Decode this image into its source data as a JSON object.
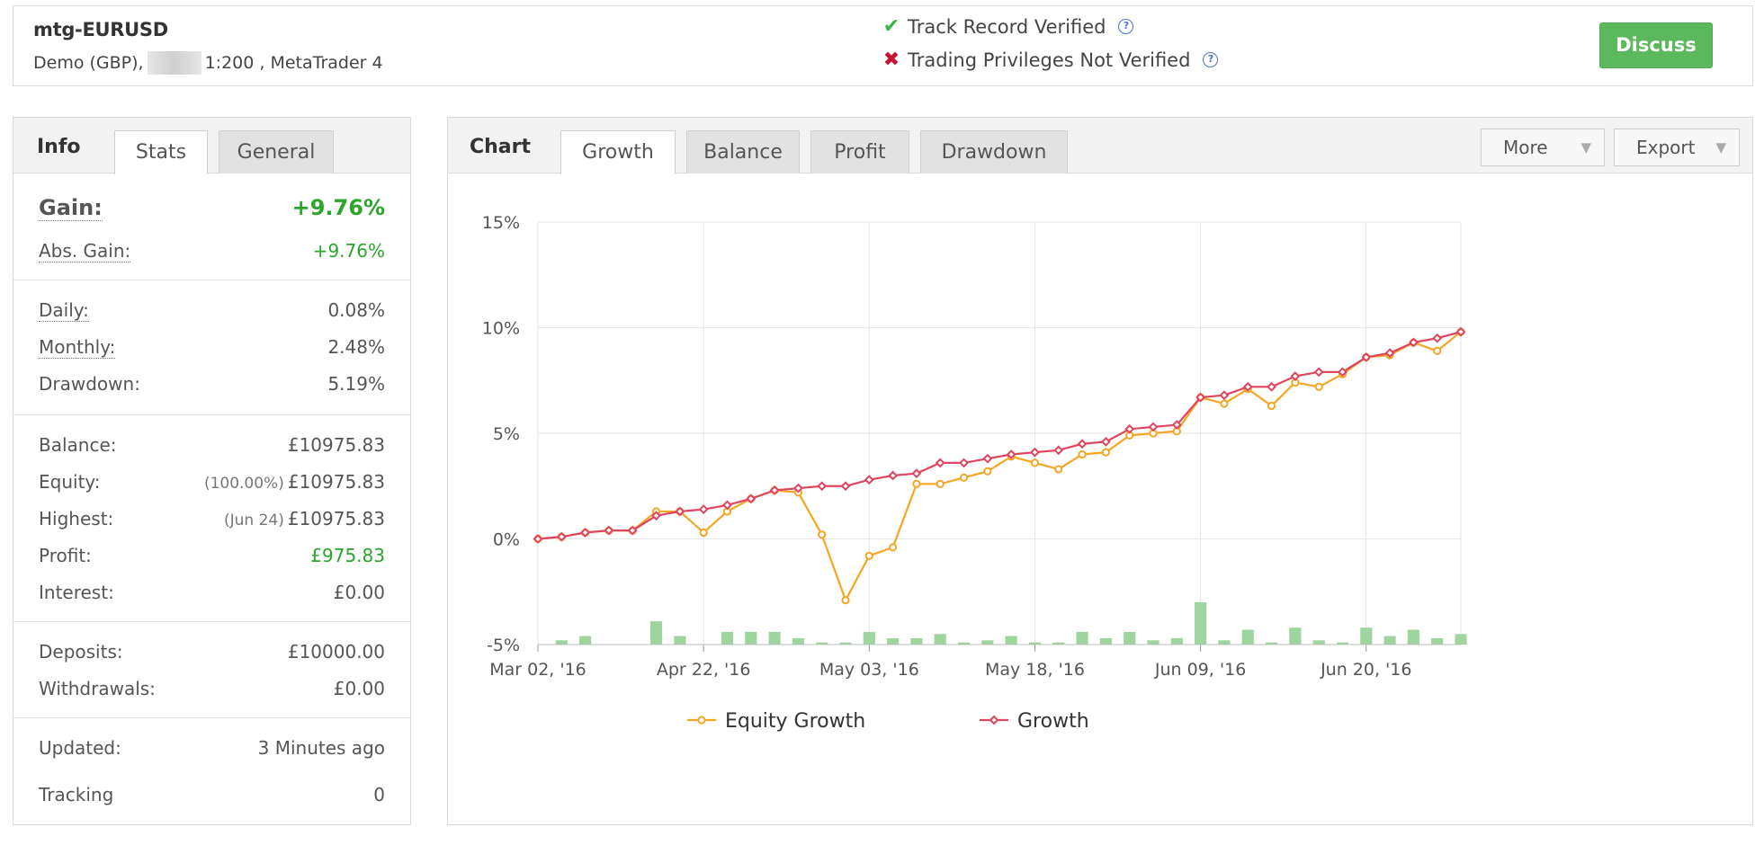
{
  "header": {
    "account_name": "mtg-EURUSD",
    "account_sub_left": "Demo (GBP),",
    "account_sub_right": "1:200 , MetaTrader 4",
    "track_record": "Track Record Verified",
    "trading_privileges": "Trading Privileges Not Verified",
    "help_glyph": "?",
    "discuss_label": "Discuss",
    "colors": {
      "verified": "#3bb24a",
      "not_verified": "#c8102e",
      "discuss": "#5cb85c"
    }
  },
  "info_panel": {
    "tabs": {
      "head": "Info",
      "stats": "Stats",
      "general": "General",
      "active": "Stats"
    },
    "gain": {
      "label": "Gain:",
      "value": "+9.76%"
    },
    "abs_gain": {
      "label": "Abs. Gain:",
      "value": "+9.76%"
    },
    "daily": {
      "label": "Daily:",
      "value": "0.08%"
    },
    "monthly": {
      "label": "Monthly:",
      "value": "2.48%"
    },
    "drawdown": {
      "label": "Drawdown:",
      "value": "5.19%"
    },
    "balance": {
      "label": "Balance:",
      "value": "£10975.83"
    },
    "equity": {
      "label": "Equity:",
      "note": "(100.00%)",
      "value": "£10975.83"
    },
    "highest": {
      "label": "Highest:",
      "note": "(Jun 24)",
      "value": "£10975.83"
    },
    "profit": {
      "label": "Profit:",
      "value": "£975.83"
    },
    "interest": {
      "label": "Interest:",
      "value": "£0.00"
    },
    "deposits": {
      "label": "Deposits:",
      "value": "£10000.00"
    },
    "withdrawals": {
      "label": "Withdrawals:",
      "value": "£0.00"
    },
    "updated": {
      "label": "Updated:",
      "value": "3 Minutes ago"
    },
    "tracking": {
      "label": "Tracking",
      "value": "0"
    }
  },
  "chart_panel": {
    "head": "Chart",
    "tabs": [
      "Growth",
      "Balance",
      "Profit",
      "Drawdown"
    ],
    "active_tab": "Growth",
    "more_label": "More",
    "export_label": "Export",
    "caret_glyph": "▼"
  },
  "chart_data": {
    "type": "line",
    "title": "",
    "xlabel": "",
    "ylabel": "",
    "ylim": [
      -5,
      15
    ],
    "y_ticks": [
      "15%",
      "10%",
      "5%",
      "0%",
      "-5%"
    ],
    "x_tick_labels": [
      "Mar 02, '16",
      "Apr 22, '16",
      "May 03, '16",
      "May 18, '16",
      "Jun 09, '16",
      "Jun 20, '16"
    ],
    "x_tick_indices": [
      0,
      7,
      14,
      21,
      28,
      35
    ],
    "grid": true,
    "legend_position": "bottom",
    "series": [
      {
        "name": "Equity Growth",
        "color": "#f5a623",
        "values": [
          0.0,
          0.1,
          0.3,
          0.4,
          0.4,
          1.3,
          1.3,
          0.3,
          1.3,
          1.9,
          2.3,
          2.2,
          0.2,
          -2.9,
          -0.8,
          -0.4,
          2.6,
          2.6,
          2.9,
          3.2,
          3.9,
          3.6,
          3.3,
          4.0,
          4.1,
          4.9,
          5.0,
          5.1,
          6.7,
          6.4,
          7.1,
          6.3,
          7.4,
          7.2,
          7.8,
          8.6,
          8.7,
          9.3,
          8.9,
          9.8
        ]
      },
      {
        "name": "Growth",
        "color": "#e0455f",
        "values": [
          0.0,
          0.1,
          0.3,
          0.4,
          0.4,
          1.1,
          1.3,
          1.4,
          1.6,
          1.9,
          2.3,
          2.4,
          2.5,
          2.5,
          2.8,
          3.0,
          3.1,
          3.6,
          3.6,
          3.8,
          4.0,
          4.1,
          4.2,
          4.5,
          4.6,
          5.2,
          5.3,
          5.4,
          6.7,
          6.8,
          7.2,
          7.2,
          7.7,
          7.9,
          7.9,
          8.6,
          8.8,
          9.3,
          9.5,
          9.8
        ]
      }
    ],
    "bars": {
      "color": "#9ed49e",
      "values": [
        0,
        0.2,
        0.4,
        0,
        0,
        1.1,
        0.4,
        0,
        0.6,
        0.6,
        0.6,
        0.3,
        0.1,
        0.1,
        0.6,
        0.3,
        0.3,
        0.5,
        0.1,
        0.2,
        0.4,
        0.1,
        0.1,
        0.6,
        0.3,
        0.6,
        0.2,
        0.3,
        2.0,
        0.2,
        0.7,
        0.1,
        0.8,
        0.2,
        0.1,
        0.8,
        0.4,
        0.7,
        0.3,
        0.5
      ]
    }
  }
}
